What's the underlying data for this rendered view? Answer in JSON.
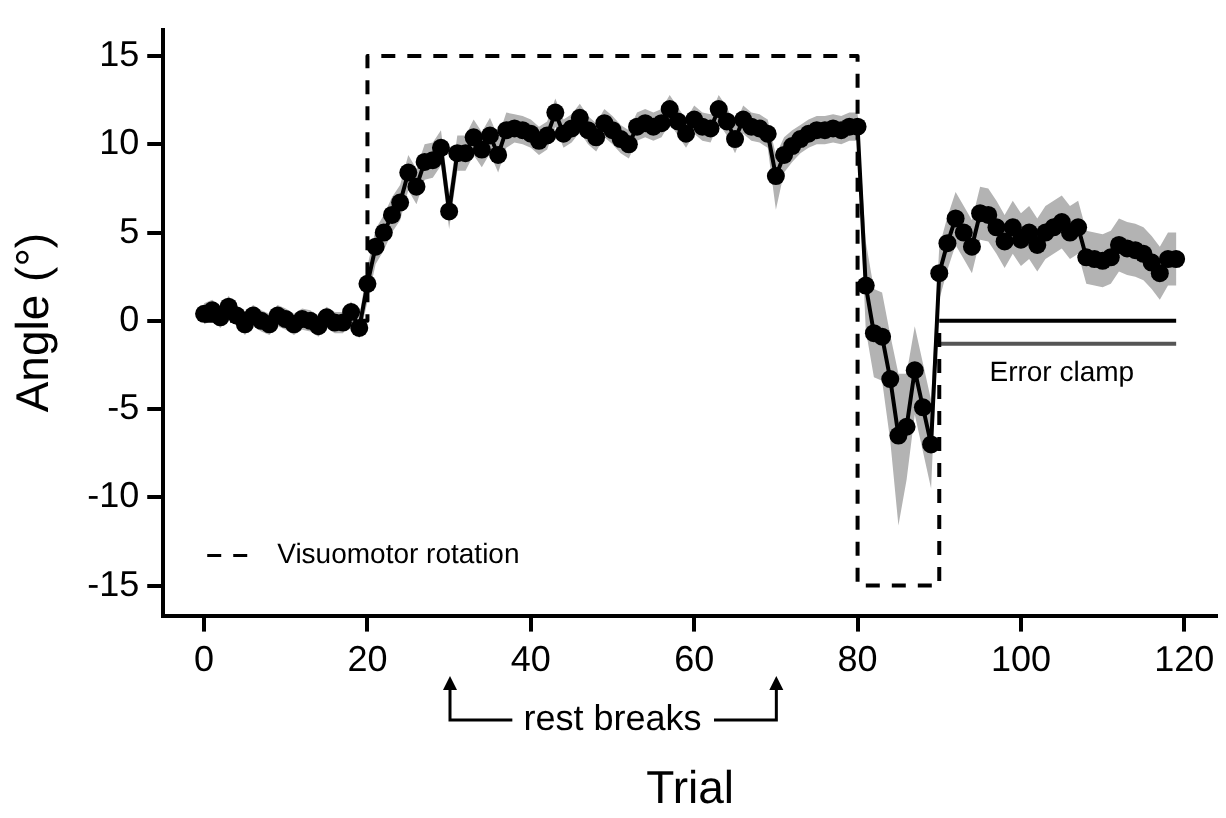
{
  "chart_data": {
    "type": "line",
    "xlabel": "Trial",
    "ylabel": "Angle (°)",
    "xlim": [
      -5,
      124
    ],
    "ylim": [
      -16.7,
      16.5
    ],
    "xticks": [
      0,
      20,
      40,
      60,
      80,
      100,
      120
    ],
    "yticks": [
      -15,
      -10,
      -5,
      0,
      5,
      10,
      15
    ],
    "grid": false,
    "legend": "bottom left",
    "marker": "circle",
    "annotations": [
      "rest breaks",
      {
        "text": "Error clamp",
        "x": 105,
        "y": -1.3
      }
    ],
    "series": [
      {
        "type": "line",
        "line_style": "dashed",
        "marker": "none",
        "name": "Visuomotor rotation",
        "color": "#000000",
        "x": [
          0,
          20,
          20,
          80,
          80,
          90,
          90
        ],
        "values": [
          0,
          0,
          15,
          15,
          -15,
          -15,
          0
        ]
      },
      {
        "type": "line",
        "line_style": "solid",
        "marker": "none",
        "color": "#000000",
        "x": [
          90,
          119
        ],
        "values": [
          0,
          0
        ]
      },
      {
        "type": "line",
        "line_style": "solid",
        "marker": "none",
        "color": "#555555",
        "x": [
          90,
          119
        ],
        "values": [
          -1.3,
          -1.3
        ]
      },
      {
        "line_style": "solid",
        "color": "#000000",
        "x": [
          0,
          1,
          2,
          3,
          4,
          5,
          6,
          7,
          8,
          9,
          10,
          11,
          12,
          13,
          14,
          15,
          16,
          17,
          18,
          19,
          20,
          21,
          22,
          23,
          24,
          25,
          26,
          27,
          28,
          29,
          30,
          31,
          32,
          33,
          34,
          35,
          36,
          37,
          38,
          39,
          40,
          41,
          42,
          43,
          44,
          45,
          46,
          47,
          48,
          49,
          50,
          51,
          52,
          53,
          54,
          55,
          56,
          57,
          58,
          59,
          60,
          61,
          62,
          63,
          64,
          65,
          66,
          67,
          68,
          69,
          70,
          71,
          72,
          73,
          74,
          75,
          76,
          77,
          78,
          79,
          80,
          81,
          82,
          83,
          84,
          85,
          86,
          87,
          88,
          89,
          90,
          91,
          92,
          93,
          94,
          95,
          96,
          97,
          98,
          99,
          100,
          101,
          102,
          103,
          104,
          105,
          106,
          107,
          108,
          109,
          110,
          111,
          112,
          113,
          114,
          115,
          116,
          117,
          118,
          119
        ],
        "values": [
          0.4,
          0.6,
          0.2,
          0.8,
          0.3,
          -0.2,
          0.3,
          0.0,
          -0.2,
          0.3,
          0.1,
          -0.2,
          0.1,
          0.0,
          -0.3,
          0.2,
          -0.1,
          -0.1,
          0.5,
          -0.4,
          2.1,
          4.2,
          5.0,
          6.0,
          6.7,
          8.4,
          7.6,
          9.0,
          9.1,
          9.8,
          6.2,
          9.5,
          9.5,
          10.4,
          9.7,
          10.5,
          9.4,
          10.8,
          10.9,
          10.8,
          10.6,
          10.2,
          10.5,
          11.8,
          10.6,
          10.9,
          11.5,
          10.8,
          10.4,
          11.2,
          10.8,
          10.3,
          10.0,
          11.0,
          11.2,
          11.0,
          11.2,
          12.0,
          11.3,
          10.6,
          11.4,
          11.0,
          10.9,
          12.0,
          11.3,
          10.3,
          11.4,
          11.0,
          10.9,
          10.6,
          8.2,
          9.4,
          9.9,
          10.3,
          10.6,
          10.8,
          10.8,
          10.9,
          10.8,
          11.0,
          11.0,
          2.0,
          -0.7,
          -0.9,
          -3.3,
          -6.5,
          -6.0,
          -2.8,
          -4.9,
          -7.0,
          2.7,
          4.4,
          5.8,
          5.0,
          4.2,
          6.1,
          6.0,
          5.3,
          4.5,
          5.3,
          4.6,
          5.0,
          4.3,
          5.0,
          5.3,
          5.6,
          5.0,
          5.3,
          3.6,
          3.5,
          3.4,
          3.6,
          4.3,
          4.1,
          4.0,
          3.8,
          3.3,
          2.7,
          3.5,
          3.5
        ],
        "lower": [
          -0.2,
          0.0,
          -0.4,
          0.2,
          -0.3,
          -0.8,
          -0.3,
          -0.6,
          -0.8,
          -0.3,
          -0.5,
          -0.8,
          -0.5,
          -0.6,
          -0.9,
          -0.4,
          -0.7,
          -0.7,
          -0.1,
          -1.0,
          1.1,
          3.2,
          4.0,
          5.0,
          5.7,
          7.4,
          6.6,
          8.0,
          8.1,
          8.8,
          5.2,
          8.5,
          8.5,
          9.4,
          8.7,
          9.5,
          8.4,
          9.8,
          10.1,
          10.0,
          9.8,
          9.4,
          9.7,
          11.0,
          9.8,
          10.1,
          10.7,
          10.0,
          9.6,
          10.4,
          10.0,
          9.5,
          9.2,
          10.2,
          10.4,
          10.2,
          10.4,
          11.2,
          10.5,
          9.8,
          10.6,
          10.2,
          10.1,
          11.2,
          10.5,
          9.5,
          10.6,
          10.2,
          10.1,
          9.8,
          6.3,
          8.4,
          9.0,
          9.5,
          9.8,
          10.0,
          10.0,
          10.1,
          10.0,
          10.2,
          10.2,
          -0.5,
          -3.2,
          -3.4,
          -6.8,
          -11.6,
          -9.0,
          -5.3,
          -7.4,
          -9.5,
          1.2,
          2.9,
          4.3,
          3.5,
          2.7,
          4.6,
          4.5,
          3.8,
          3.0,
          3.8,
          3.1,
          3.5,
          2.8,
          3.5,
          3.8,
          4.1,
          3.5,
          3.8,
          2.1,
          2.0,
          1.9,
          2.1,
          2.8,
          2.6,
          2.5,
          2.3,
          1.8,
          1.2,
          2.0,
          2.0
        ],
        "upper": [
          1.0,
          1.2,
          0.8,
          1.4,
          0.9,
          0.4,
          0.9,
          0.6,
          0.4,
          0.9,
          0.7,
          0.4,
          0.7,
          0.6,
          0.3,
          0.8,
          0.5,
          0.5,
          1.1,
          0.2,
          3.1,
          5.2,
          6.0,
          7.0,
          7.7,
          9.4,
          8.6,
          10.0,
          10.1,
          10.8,
          7.2,
          10.5,
          10.5,
          11.4,
          10.7,
          11.5,
          10.4,
          11.8,
          11.7,
          11.6,
          11.4,
          11.0,
          11.3,
          12.6,
          11.4,
          11.7,
          12.3,
          11.6,
          11.2,
          12.0,
          11.6,
          11.1,
          10.8,
          11.8,
          12.0,
          11.8,
          12.0,
          12.8,
          12.1,
          11.4,
          12.2,
          11.8,
          11.7,
          12.8,
          12.1,
          11.1,
          12.2,
          11.8,
          11.7,
          11.4,
          9.4,
          10.4,
          10.8,
          11.1,
          11.4,
          11.6,
          11.6,
          11.7,
          11.6,
          11.8,
          11.8,
          4.5,
          1.8,
          1.6,
          -0.8,
          -3.0,
          -3.0,
          -0.3,
          -2.4,
          -4.5,
          4.2,
          5.9,
          7.3,
          6.5,
          5.7,
          7.6,
          7.5,
          6.8,
          6.0,
          6.8,
          6.1,
          6.5,
          5.8,
          6.5,
          6.8,
          7.1,
          6.5,
          6.8,
          5.1,
          5.0,
          4.9,
          5.1,
          5.8,
          5.6,
          5.5,
          5.3,
          4.8,
          4.2,
          5.0,
          5.0
        ]
      }
    ]
  }
}
